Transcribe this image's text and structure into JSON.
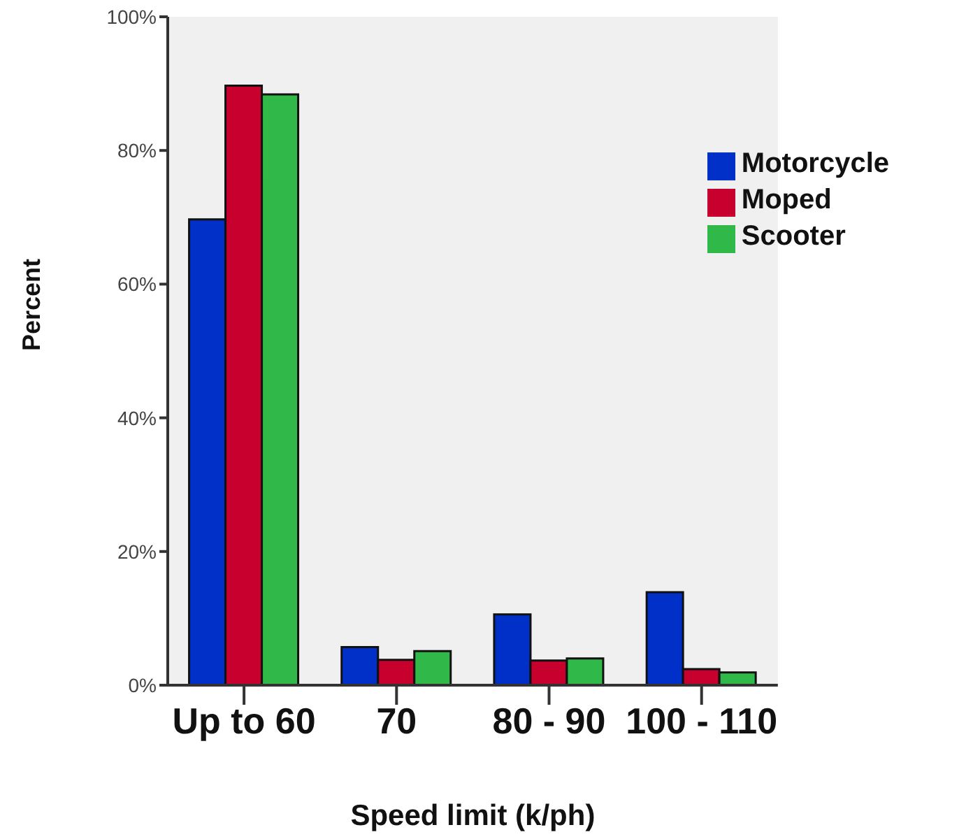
{
  "chart_data": {
    "type": "bar",
    "xlabel": "Speed limit (k/ph)",
    "ylabel": "Percent",
    "categories": [
      "Up to 60",
      "70",
      "80 - 90",
      "100 - 110"
    ],
    "series": [
      {
        "name": "Motorcycle",
        "color": "#0030c8",
        "values": [
          69.7,
          5.7,
          10.6,
          13.9
        ]
      },
      {
        "name": "Moped",
        "color": "#c8002e",
        "values": [
          89.7,
          3.8,
          3.7,
          2.4
        ]
      },
      {
        "name": "Scooter",
        "color": "#30b848",
        "values": [
          88.4,
          5.1,
          4.0,
          1.9
        ]
      }
    ],
    "ylim": [
      0,
      100
    ],
    "yticks": [
      {
        "value": 0,
        "label": "0%"
      },
      {
        "value": 20,
        "label": "20%"
      },
      {
        "value": 40,
        "label": "40%"
      },
      {
        "value": 60,
        "label": "60%"
      },
      {
        "value": 80,
        "label": "80%"
      },
      {
        "value": 100,
        "label": "100%"
      }
    ],
    "grid": false,
    "legend": "top right"
  }
}
